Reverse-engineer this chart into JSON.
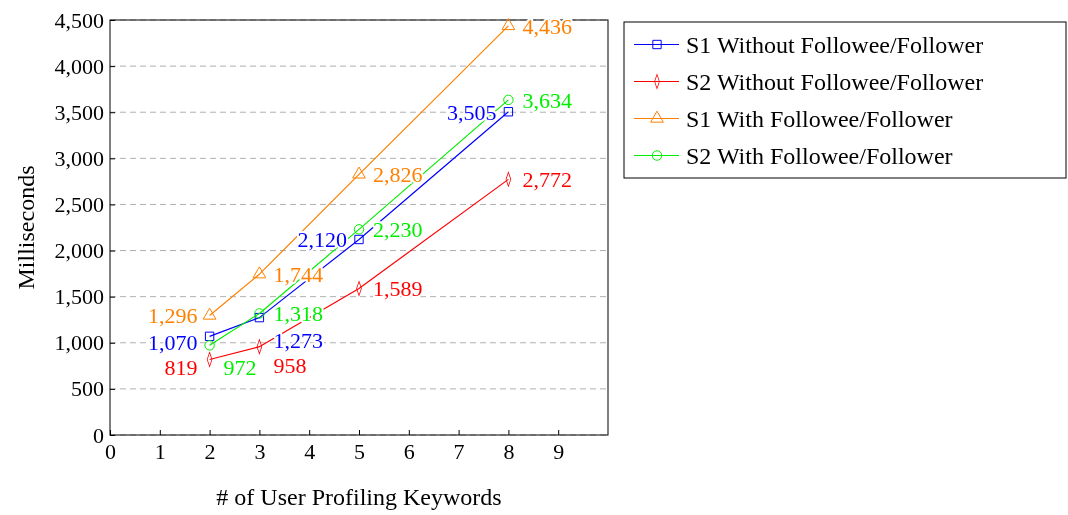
{
  "chart_data": {
    "type": "line",
    "xlabel": "# of User Profiling Keywords",
    "ylabel": "Milliseconds",
    "xlim": [
      0,
      10
    ],
    "xticks": [
      0,
      1,
      2,
      3,
      4,
      5,
      6,
      7,
      8,
      9
    ],
    "ylim": [
      0,
      4500
    ],
    "yticks": [
      {
        "value": 0,
        "label": "0"
      },
      {
        "value": 500,
        "label": "500"
      },
      {
        "value": 1000,
        "label": "1,000"
      },
      {
        "value": 1500,
        "label": "1,500"
      },
      {
        "value": 2000,
        "label": "2,000"
      },
      {
        "value": 2500,
        "label": "2,500"
      },
      {
        "value": 3000,
        "label": "3,000"
      },
      {
        "value": 3500,
        "label": "3,500"
      },
      {
        "value": 4000,
        "label": "4,000"
      },
      {
        "value": 4500,
        "label": "4,500"
      }
    ],
    "grid": "y",
    "legend": "right",
    "series": [
      {
        "name": "S1 Without Followee/Follower",
        "color": "#0000ff",
        "marker": "square",
        "x": [
          2,
          3,
          5,
          8
        ],
        "values": [
          1070,
          1273,
          2120,
          3505
        ],
        "value_labels": [
          "1,070",
          "1,273",
          "2,120",
          "3,505"
        ]
      },
      {
        "name": "S2 Without Followee/Follower",
        "color": "#ff0000",
        "marker": "diamond",
        "x": [
          2,
          3,
          5,
          8
        ],
        "values": [
          819,
          958,
          1589,
          2772
        ],
        "value_labels": [
          "819",
          "958",
          "1,589",
          "2,772"
        ]
      },
      {
        "name": "S1 With Followee/Follower",
        "color": "#ff8000",
        "marker": "triangle",
        "x": [
          2,
          3,
          5,
          8
        ],
        "values": [
          1296,
          1744,
          2826,
          4436
        ],
        "value_labels": [
          "1,296",
          "1,744",
          "2,826",
          "4,436"
        ]
      },
      {
        "name": "S2 With Followee/Follower",
        "color": "#00ee00",
        "marker": "circle",
        "x": [
          2,
          3,
          5,
          8
        ],
        "values": [
          972,
          1318,
          2230,
          3634
        ],
        "value_labels": [
          "972",
          "1,318",
          "2,230",
          "3,634"
        ]
      }
    ]
  }
}
